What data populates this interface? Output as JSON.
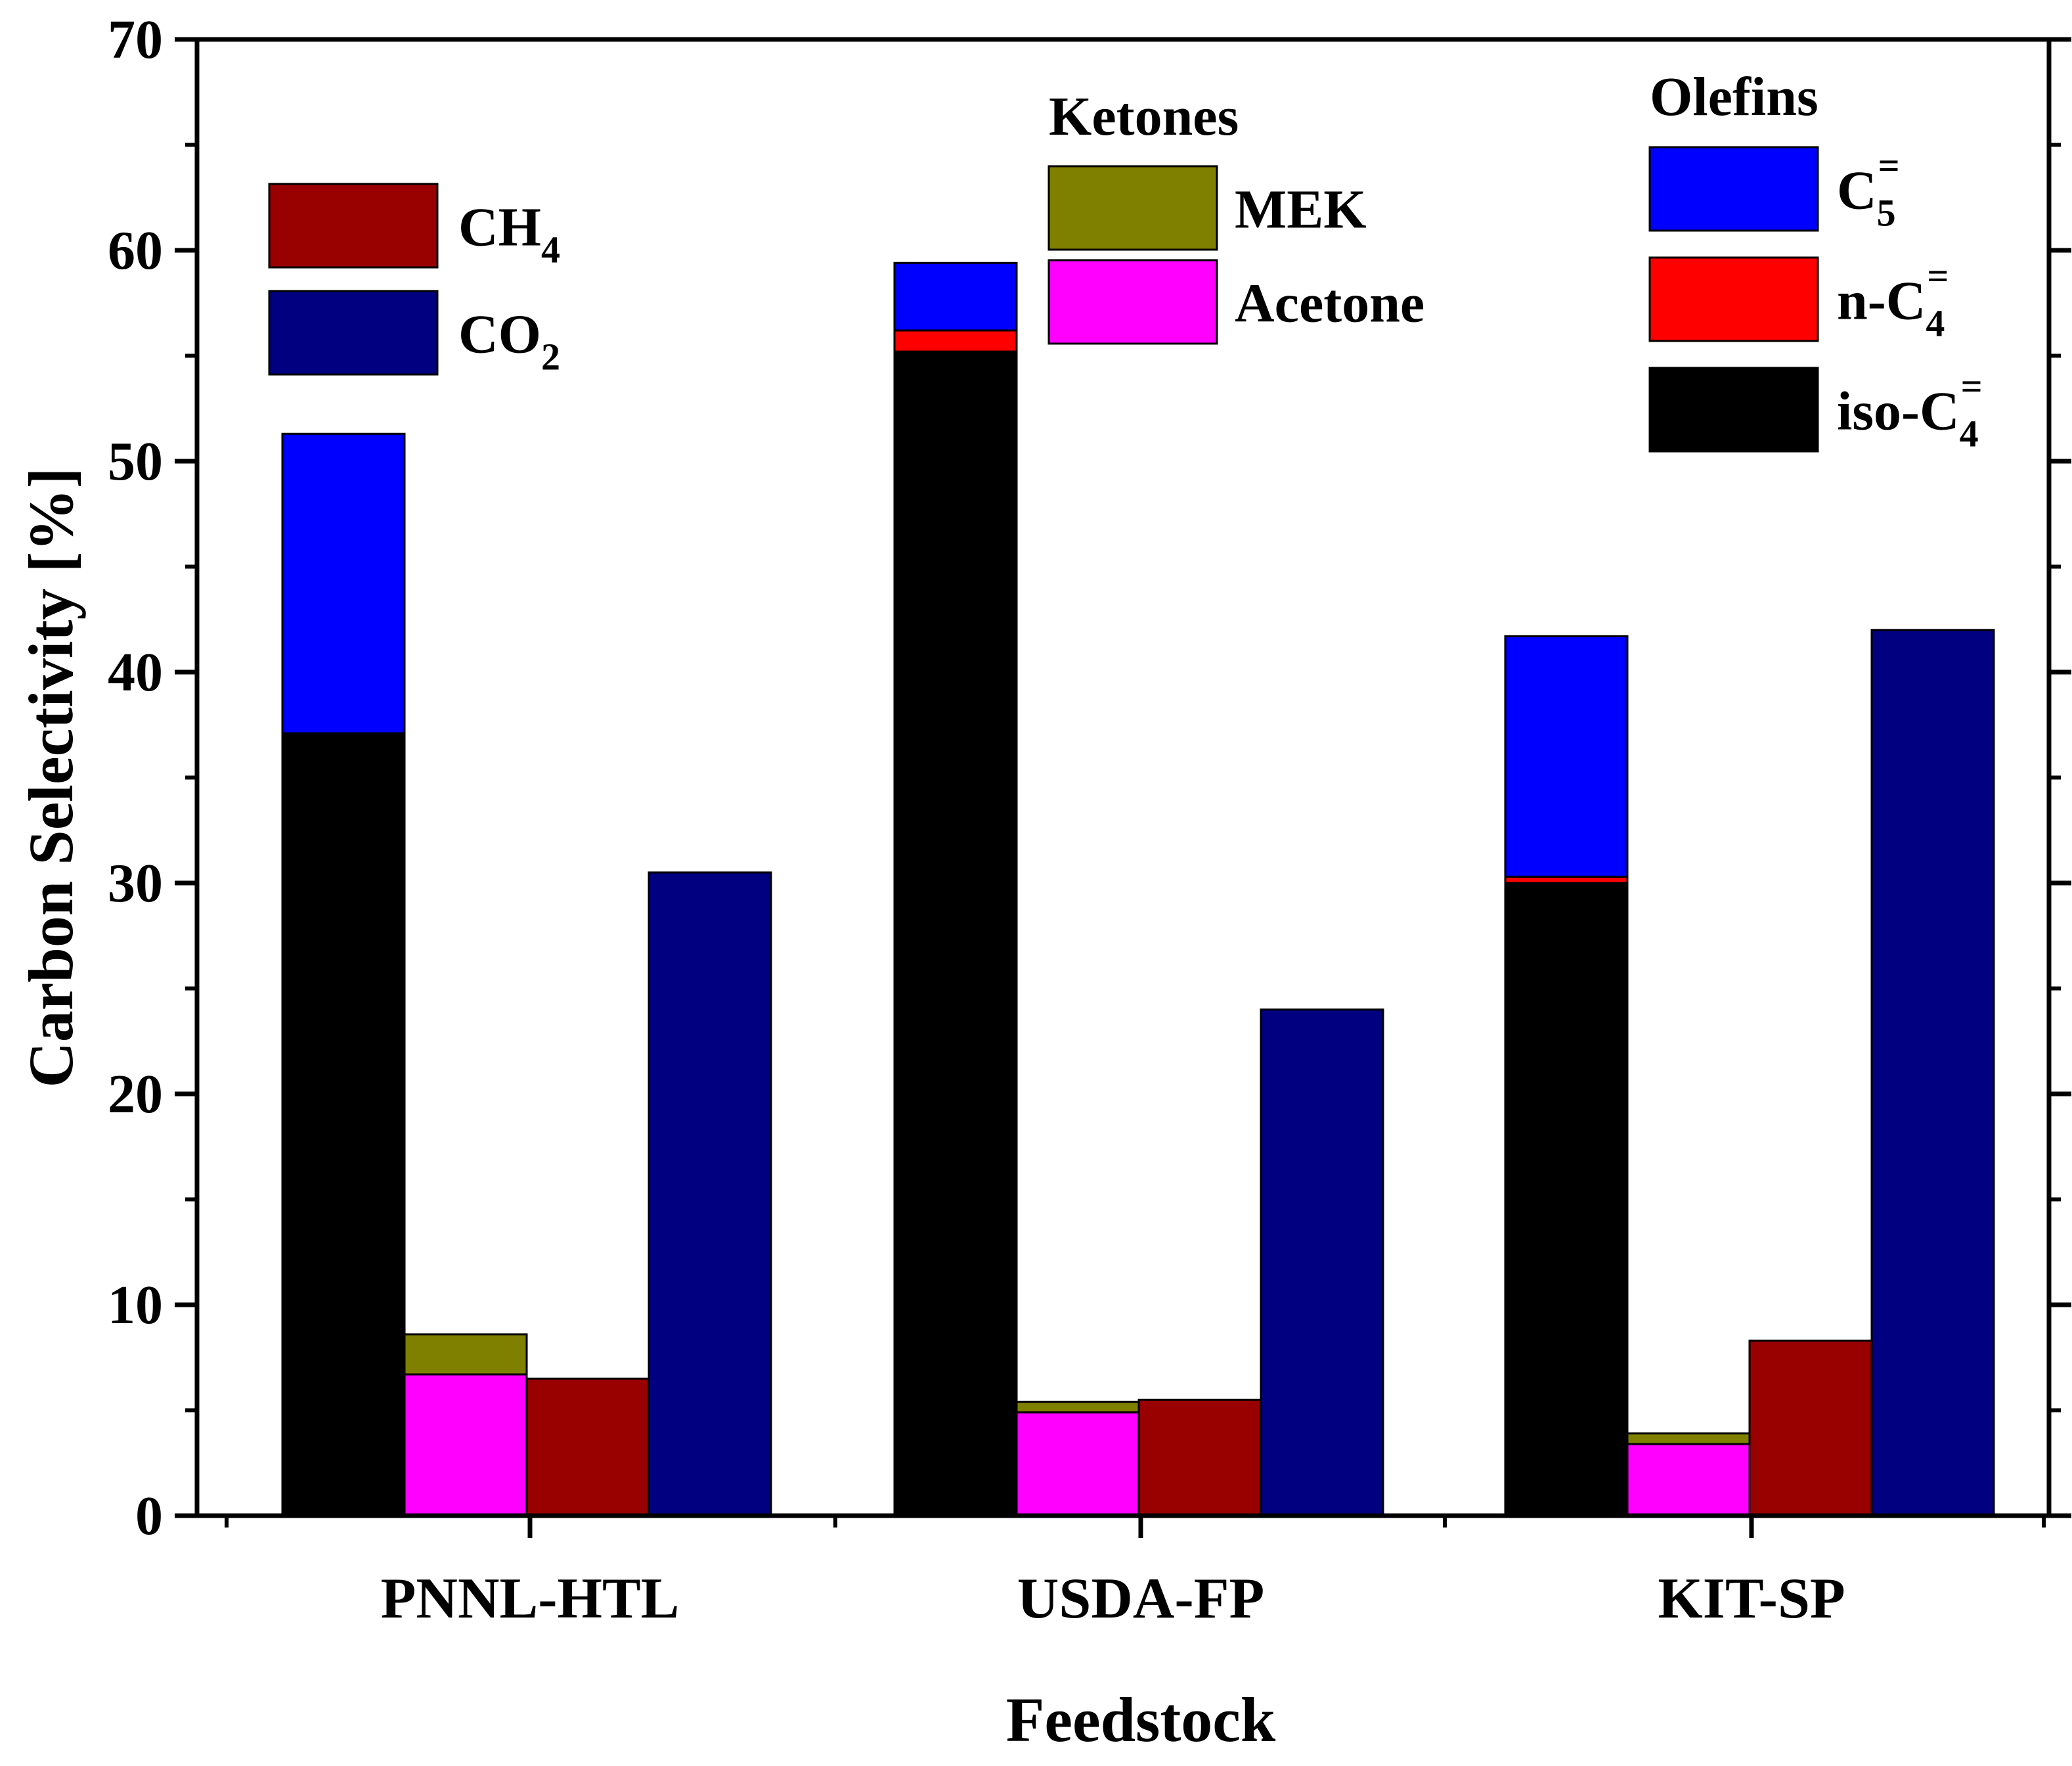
{
  "chart_data": {
    "type": "bar",
    "title": "",
    "xlabel": "Feedstock",
    "ylabel": "Carbon Selectivity [%]",
    "ylim": [
      0,
      70
    ],
    "yticks": [
      "0",
      "10",
      "20",
      "30",
      "40",
      "50",
      "60",
      "70"
    ],
    "grid": false,
    "categories": [
      "PNNL-HTL",
      "USDA-FP",
      "KIT-SP"
    ],
    "groups": [
      {
        "name": "Olefins",
        "stack": [
          "iso-C4=",
          "n-C4=",
          "C5="
        ]
      },
      {
        "name": "Ketones",
        "stack": [
          "Acetone",
          "MEK"
        ]
      },
      {
        "name": "CH4",
        "stack": [
          "CH4"
        ]
      },
      {
        "name": "CO2",
        "stack": [
          "CO2"
        ]
      }
    ],
    "series": [
      {
        "name": "iso-C4=",
        "group": "Olefins",
        "color": "#000000",
        "values": [
          37.1,
          55.2,
          30.0
        ]
      },
      {
        "name": "n-C4=",
        "group": "Olefins",
        "color": "#ff0000",
        "values": [
          0.0,
          1.0,
          0.3
        ]
      },
      {
        "name": "C5=",
        "group": "Olefins",
        "color": "#0000ff",
        "values": [
          14.2,
          3.2,
          11.4
        ]
      },
      {
        "name": "Acetone",
        "group": "Ketones",
        "color": "#ff00ff",
        "values": [
          6.7,
          4.9,
          3.4
        ]
      },
      {
        "name": "MEK",
        "group": "Ketones",
        "color": "#808000",
        "values": [
          1.9,
          0.5,
          0.5
        ]
      },
      {
        "name": "CH4",
        "group": "CH4",
        "color": "#990000",
        "values": [
          6.5,
          5.5,
          8.3
        ]
      },
      {
        "name": "CO2",
        "group": "CO2",
        "color": "#000080",
        "values": [
          30.5,
          24.0,
          42.0
        ]
      }
    ],
    "legends": [
      {
        "placement": "top-left",
        "heading": "",
        "items": [
          {
            "series": "CH4",
            "label": "CH",
            "sub": "4",
            "sup": ""
          },
          {
            "series": "CO2",
            "label": "CO",
            "sub": "2",
            "sup": ""
          }
        ]
      },
      {
        "placement": "top-center",
        "heading": "Ketones",
        "items": [
          {
            "series": "MEK",
            "label": "MEK",
            "sub": "",
            "sup": ""
          },
          {
            "series": "Acetone",
            "label": "Acetone",
            "sub": "",
            "sup": ""
          }
        ]
      },
      {
        "placement": "top-right",
        "heading": "Olefins",
        "items": [
          {
            "series": "C5=",
            "label": "C",
            "sub": "5",
            "sup": "="
          },
          {
            "series": "n-C4=",
            "label": "n-C",
            "sub": "4",
            "sup": "="
          },
          {
            "series": "iso-C4=",
            "label": "iso-C",
            "sub": "4",
            "sup": "="
          }
        ]
      }
    ]
  }
}
